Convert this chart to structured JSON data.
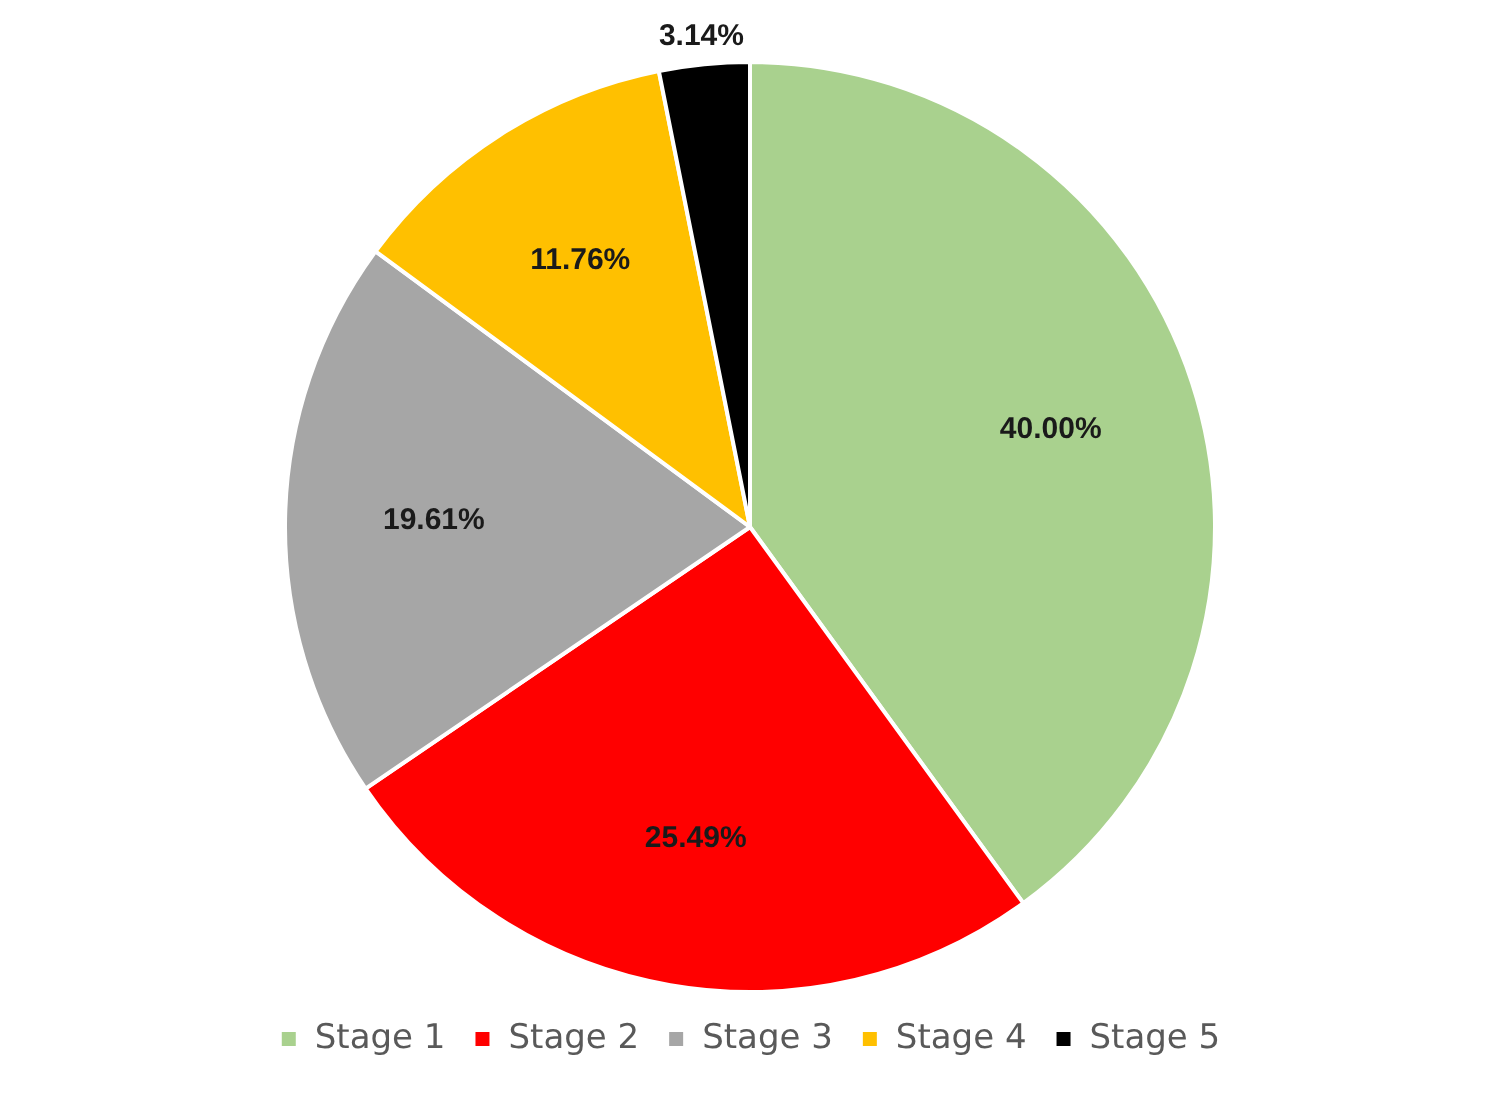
{
  "chart_data": {
    "type": "pie",
    "categories": [
      "Stage 1",
      "Stage 2",
      "Stage 3",
      "Stage 4",
      "Stage 5"
    ],
    "values": [
      40.0,
      25.49,
      19.61,
      11.76,
      3.14
    ],
    "colors": [
      "#a9d18e",
      "#ff0000",
      "#a6a6a6",
      "#ffc000",
      "#000000"
    ],
    "value_labels": [
      "40.00%",
      "25.49%",
      "19.61%",
      "11.76%",
      "3.14%"
    ],
    "legend": "bottom"
  }
}
